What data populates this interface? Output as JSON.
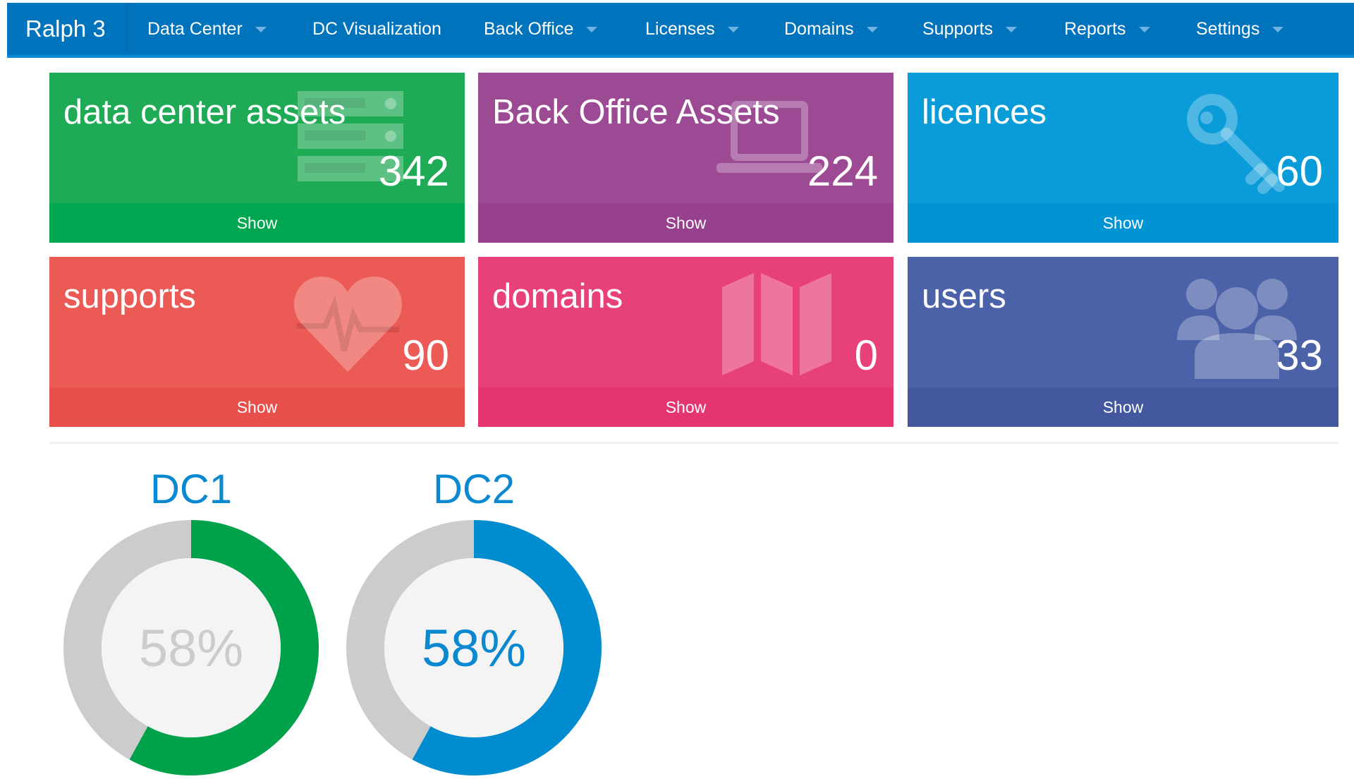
{
  "navbar": {
    "brand": "Ralph 3",
    "items": [
      {
        "label": "Data Center",
        "dropdown": true
      },
      {
        "label": "DC Visualization",
        "dropdown": false
      },
      {
        "label": "Back Office",
        "dropdown": true
      },
      {
        "label": "Licenses",
        "dropdown": true
      },
      {
        "label": "Domains",
        "dropdown": true
      },
      {
        "label": "Supports",
        "dropdown": true
      },
      {
        "label": "Reports",
        "dropdown": true
      },
      {
        "label": "Settings",
        "dropdown": true
      }
    ]
  },
  "tiles": [
    {
      "title": "data center assets",
      "count": "342",
      "show": "Show",
      "icon": "server-icon",
      "color": "#1faa55",
      "footer_color": "#00a650"
    },
    {
      "title": "Back Office Assets",
      "count": "224",
      "show": "Show",
      "icon": "laptop-icon",
      "color": "#9b4a93",
      "footer_color": "#97418e"
    },
    {
      "title": "licences",
      "count": "60",
      "show": "Show",
      "icon": "key-icon",
      "color": "#0a9bd9",
      "footer_color": "#0094d4"
    },
    {
      "title": "supports",
      "count": "90",
      "show": "Show",
      "icon": "heartbeat-icon",
      "color": "#ec5a55",
      "footer_color": "#e94f4a"
    },
    {
      "title": "domains",
      "count": "0",
      "show": "Show",
      "icon": "map-icon",
      "color": "#e8407a",
      "footer_color": "#e5356f"
    },
    {
      "title": "users",
      "count": "33",
      "show": "Show",
      "icon": "users-icon",
      "color": "#4c62a8",
      "footer_color": "#44589f"
    }
  ],
  "datacenters": [
    {
      "name": "DC1",
      "percent": 58,
      "label": "58%",
      "color": "#00a14b",
      "text_color": "#cccccc"
    },
    {
      "name": "DC2",
      "percent": 58,
      "label": "58%",
      "color": "#008ccf",
      "text_color": "#0a88d0"
    }
  ]
}
